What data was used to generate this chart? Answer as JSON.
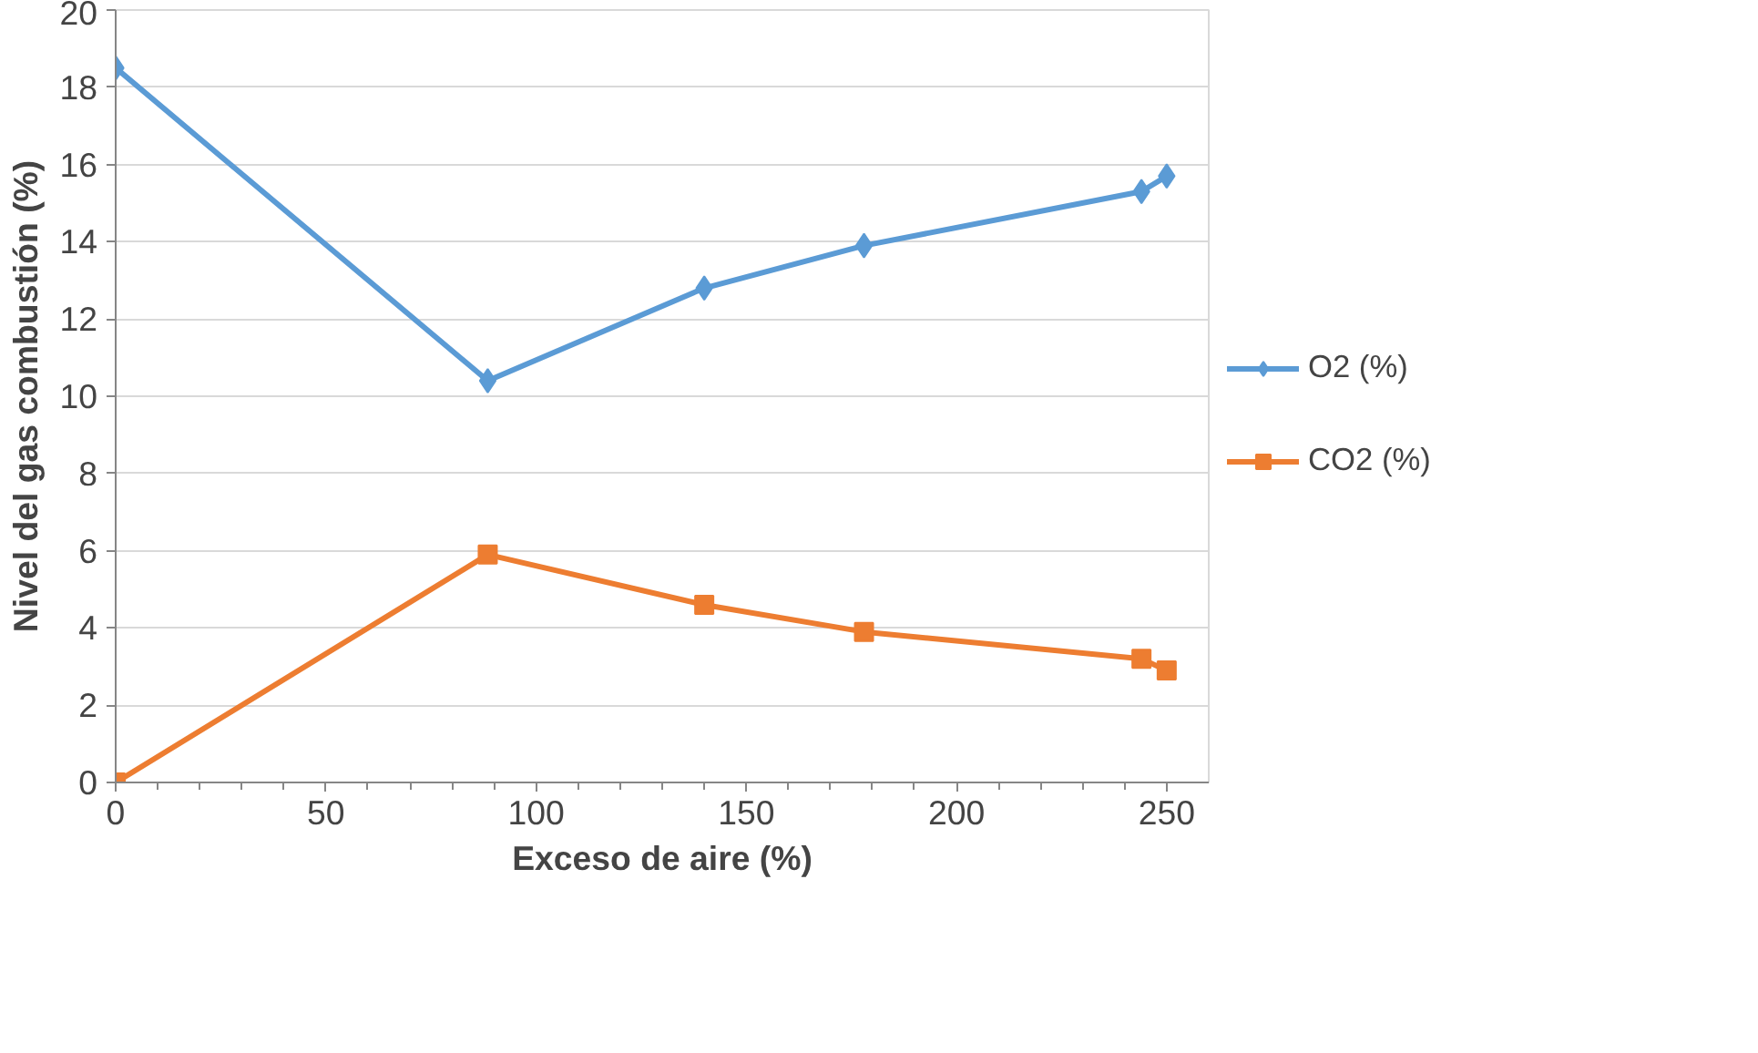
{
  "chart_data": {
    "type": "line",
    "xlabel": "Exceso de aire (%)",
    "ylabel": "Nivel del gas combustión (%)",
    "xlim": [
      0,
      260
    ],
    "xticks": [
      0,
      50,
      100,
      150,
      200,
      250
    ],
    "ylim": [
      0,
      20
    ],
    "yticks": [
      0,
      2,
      4,
      6,
      8,
      10,
      12,
      14,
      16,
      18,
      20
    ],
    "grid": "y",
    "legend": "right",
    "line_style": "solid",
    "series": [
      {
        "name": "O2 (%)",
        "color": "#5b9bd5",
        "marker": "diamond",
        "x": [
          0,
          88.5,
          140,
          178,
          244,
          250
        ],
        "values": [
          18.5,
          10.4,
          12.8,
          13.9,
          15.3,
          15.7
        ]
      },
      {
        "name": "CO2 (%)",
        "color": "#ed7d31",
        "marker": "square",
        "x": [
          0,
          88.5,
          140,
          178,
          244,
          250
        ],
        "values": [
          0,
          5.9,
          4.6,
          3.9,
          3.2,
          2.9
        ]
      }
    ]
  }
}
